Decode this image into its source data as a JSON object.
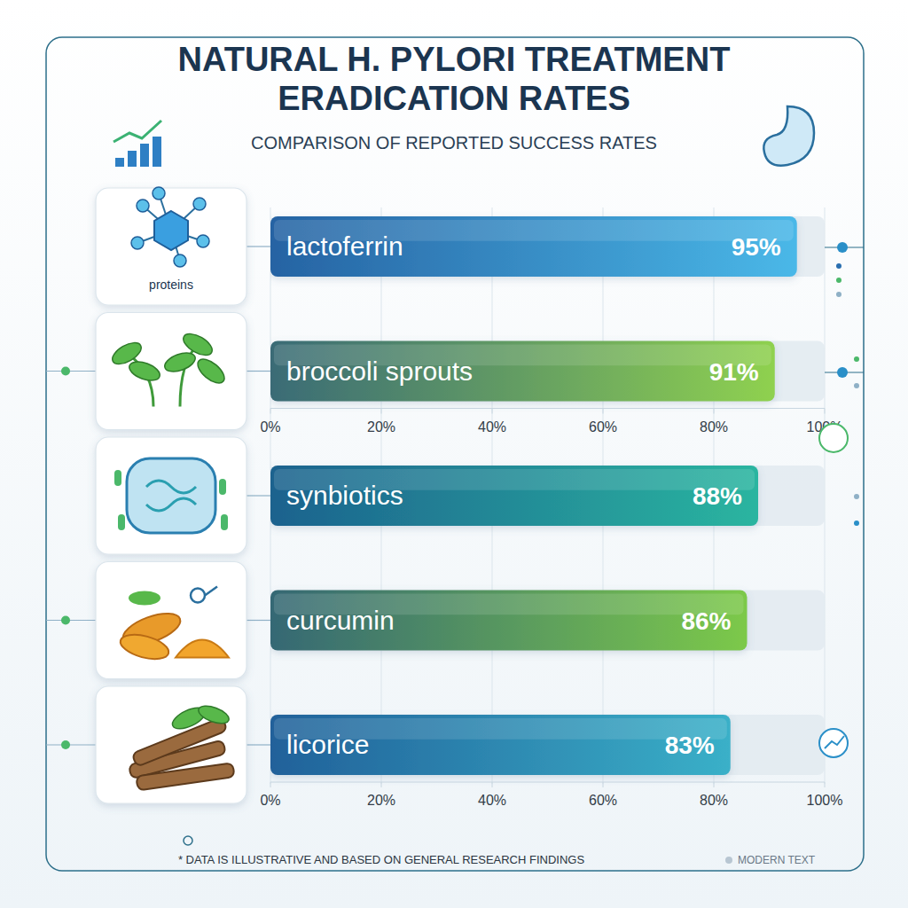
{
  "chart_data": {
    "type": "bar",
    "orientation": "horizontal",
    "title": "NATURAL H. PYLORI TREATMENT ERADICATION RATES",
    "subtitle": "COMPARISON OF REPORTED SUCCESS RATES",
    "categories": [
      "lactoferrin",
      "broccoli sprouts",
      "synbiotics",
      "curcumin",
      "licorice"
    ],
    "values": [
      95,
      91,
      88,
      86,
      83
    ],
    "value_labels": [
      "95%",
      "91%",
      "88%",
      "86%",
      "83%"
    ],
    "colors": [
      "#4ab8e8",
      "#8fd14f",
      "#2ab5a0",
      "#7cc94a",
      "#3ab0c8"
    ],
    "xlim": [
      0,
      100
    ],
    "xticks": [
      {
        "value": 0,
        "label": "0%"
      },
      {
        "value": 20,
        "label": "20%"
      },
      {
        "value": 40,
        "label": "40%"
      },
      {
        "value": 60,
        "label": "60%"
      },
      {
        "value": 80,
        "label": "80%"
      },
      {
        "value": 100,
        "label": "100%"
      }
    ],
    "grid": true,
    "data_labels": true,
    "annotations": [
      "proteins",
      "* DATA IS ILLUSTRATIVE AND BASED ON GENERAL RESEARCH FINDINGS",
      "MODERN TEXT"
    ]
  }
}
